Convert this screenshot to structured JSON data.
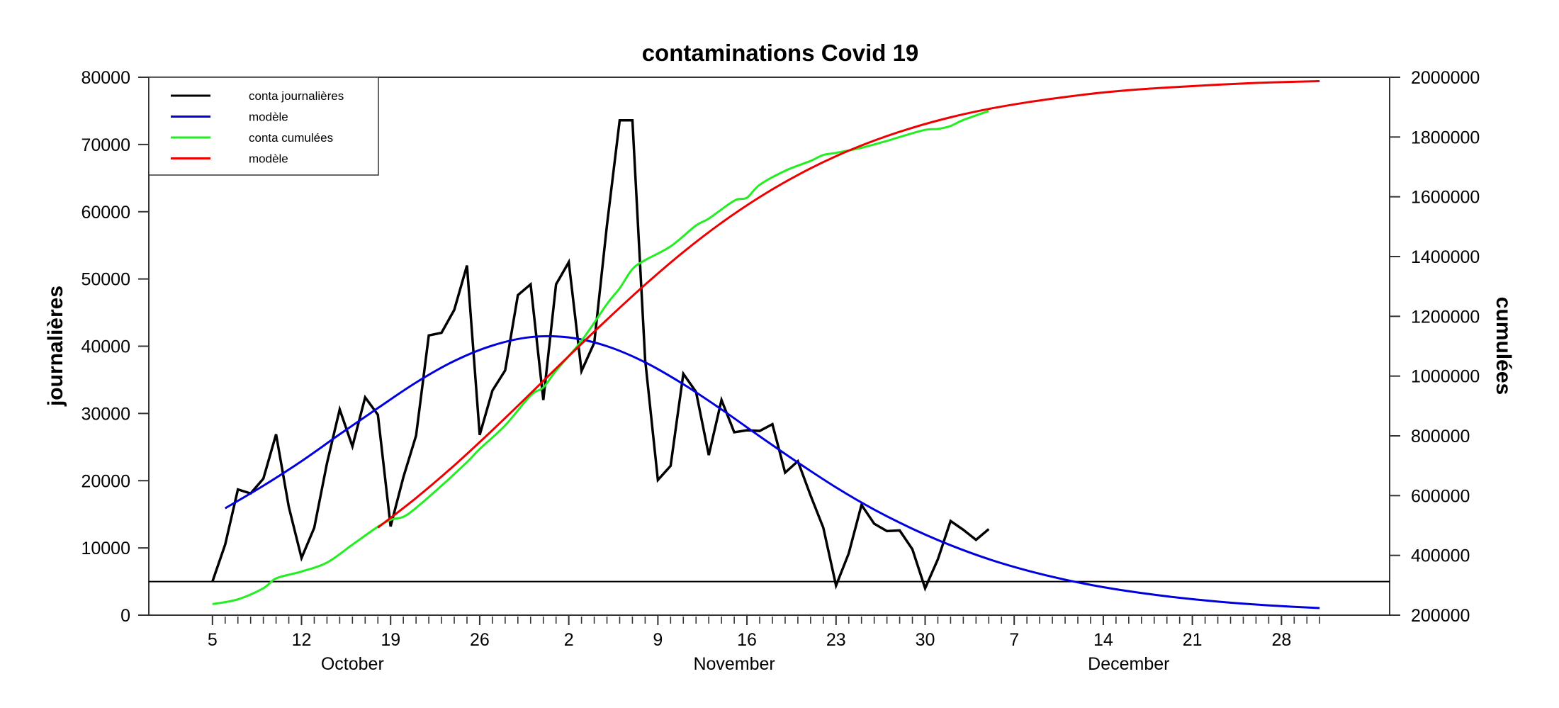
{
  "chart_data": {
    "type": "line",
    "title": "contaminations Covid 19",
    "ylabel_left": "journalières",
    "ylabel_right": "cumulées",
    "ylim_left": [
      0,
      80000
    ],
    "ylim_right": [
      200000,
      2000000
    ],
    "yticks_left": [
      "0",
      "10000",
      "20000",
      "30000",
      "40000",
      "50000",
      "60000",
      "70000",
      "80000"
    ],
    "yticks_right": [
      "200000",
      "400000",
      "600000",
      "800000",
      "1000000",
      "1200000",
      "1400000",
      "1600000",
      "1800000",
      "2000000"
    ],
    "xlim": [
      "09-30",
      "01-05"
    ],
    "xticks": [
      {
        "date": "10-05",
        "label": "5"
      },
      {
        "date": "10-12",
        "label": "12"
      },
      {
        "date": "10-19",
        "label": "19"
      },
      {
        "date": "10-26",
        "label": "26"
      },
      {
        "date": "11-02",
        "label": "2"
      },
      {
        "date": "11-09",
        "label": "9"
      },
      {
        "date": "11-16",
        "label": "16"
      },
      {
        "date": "11-23",
        "label": "23"
      },
      {
        "date": "11-30",
        "label": "30"
      },
      {
        "date": "12-07",
        "label": "7"
      },
      {
        "date": "12-14",
        "label": "14"
      },
      {
        "date": "12-21",
        "label": "21"
      },
      {
        "date": "12-28",
        "label": "28"
      }
    ],
    "minor_ticks": [
      "10-05",
      "12-31"
    ],
    "months": [
      {
        "label": "October",
        "center": "10-16"
      },
      {
        "label": "November",
        "center": "11-15"
      },
      {
        "label": "December",
        "center": "12-16"
      }
    ],
    "reference_line": {
      "axis": "left",
      "value": 5000,
      "color": "#000000"
    },
    "legend": {
      "placement": "top-left"
    },
    "grid": false,
    "series": [
      {
        "name": "conta journalières",
        "axis": "left",
        "color": "#000000",
        "smooth": false,
        "x": [
          "10-05",
          "10-06",
          "10-07",
          "10-08",
          "10-09",
          "10-10",
          "10-11",
          "10-12",
          "10-13",
          "10-14",
          "10-15",
          "10-16",
          "10-17",
          "10-18",
          "10-19",
          "10-20",
          "10-21",
          "10-22",
          "10-23",
          "10-24",
          "10-25",
          "10-26",
          "10-27",
          "10-28",
          "10-29",
          "10-30",
          "10-31",
          "11-01",
          "11-02",
          "11-03",
          "11-04",
          "11-05",
          "11-06",
          "11-07",
          "11-08",
          "11-09",
          "11-10",
          "11-11",
          "11-12",
          "11-13",
          "11-14",
          "11-15",
          "11-16",
          "11-17",
          "11-18",
          "11-19",
          "11-20",
          "11-21",
          "11-22",
          "11-23",
          "11-24",
          "11-25",
          "11-26",
          "11-27",
          "11-28",
          "11-29",
          "11-30",
          "12-01",
          "12-02",
          "12-03",
          "12-04",
          "12-05"
        ],
        "y": [
          5000,
          10500,
          18700,
          18100,
          20300,
          26900,
          16100,
          8500,
          13000,
          22600,
          30600,
          25100,
          32400,
          29800,
          13200,
          20500,
          26700,
          41600,
          42000,
          45400,
          52000,
          26800,
          33400,
          36400,
          47600,
          49200,
          32000,
          49200,
          52500,
          36300,
          40500,
          58000,
          73600,
          73600,
          38000,
          20100,
          22200,
          35900,
          33200,
          23800,
          32000,
          27200,
          27500,
          27400,
          28400,
          21200,
          22900,
          17800,
          13000,
          4400,
          9200,
          16400,
          13600,
          12500,
          12600,
          9800,
          4000,
          8300,
          14000,
          12700,
          11200,
          12800
        ]
      },
      {
        "name": "modèle",
        "axis": "left",
        "color": "#0000dd",
        "smooth": true,
        "x": [
          "10-06",
          "10-09",
          "10-12",
          "10-15",
          "10-18",
          "10-21",
          "10-24",
          "10-27",
          "10-30",
          "11-02",
          "11-05",
          "11-08",
          "11-11",
          "11-14",
          "11-17",
          "11-20",
          "11-23",
          "11-26",
          "11-29",
          "12-02",
          "12-05",
          "12-08",
          "12-11",
          "12-14",
          "12-17",
          "12-20",
          "12-23",
          "12-26",
          "12-29",
          "12-31"
        ],
        "y": [
          15900,
          19250,
          22900,
          26900,
          30800,
          34600,
          37800,
          40100,
          41350,
          41300,
          40000,
          37600,
          34350,
          30600,
          26600,
          22700,
          19000,
          15700,
          12850,
          10400,
          8330,
          6650,
          5280,
          4160,
          3290,
          2580,
          2020,
          1580,
          1240,
          1050
        ]
      },
      {
        "name": "conta cumulées",
        "axis": "right",
        "color": "#22ee22",
        "smooth": true,
        "x": [
          "10-05",
          "10-07",
          "10-09",
          "10-10",
          "10-12",
          "10-14",
          "10-16",
          "10-18",
          "10-19",
          "10-20",
          "10-21",
          "10-23",
          "10-25",
          "10-26",
          "10-28",
          "10-30",
          "10-31",
          "11-01",
          "11-03",
          "11-05",
          "11-06",
          "11-07",
          "11-08",
          "11-10",
          "11-12",
          "11-13",
          "11-15",
          "11-16",
          "11-17",
          "11-19",
          "11-21",
          "11-22",
          "11-23",
          "11-25",
          "11-27",
          "11-28",
          "11-30",
          "12-01",
          "12-02",
          "12-03",
          "12-05"
        ],
        "y": [
          237000,
          253000,
          290000,
          323000,
          346000,
          376000,
          436000,
          496000,
          519000,
          529000,
          559000,
          633000,
          712000,
          756000,
          835000,
          935000,
          962000,
          1018000,
          1118000,
          1241000,
          1294000,
          1358000,
          1388000,
          1434000,
          1504000,
          1527000,
          1587000,
          1597000,
          1640000,
          1687000,
          1720000,
          1740000,
          1747000,
          1764000,
          1787000,
          1800000,
          1824000,
          1827000,
          1837000,
          1857000,
          1887000
        ]
      },
      {
        "name": "modèle",
        "axis": "right",
        "color": "#ee0000",
        "smooth": true,
        "x": [
          "10-18",
          "10-21",
          "10-24",
          "10-27",
          "10-30",
          "11-02",
          "11-05",
          "11-08",
          "11-11",
          "11-14",
          "11-17",
          "11-20",
          "11-23",
          "11-26",
          "11-29",
          "12-02",
          "12-05",
          "12-08",
          "12-11",
          "12-14",
          "12-17",
          "12-20",
          "12-23",
          "12-26",
          "12-29",
          "12-31"
        ],
        "y": [
          493000,
          592000,
          701000,
          819000,
          942000,
          1067000,
          1189000,
          1306000,
          1415000,
          1513000,
          1599000,
          1673000,
          1736000,
          1788000,
          1831000,
          1866000,
          1894000,
          1916000,
          1934000,
          1949000,
          1960000,
          1968000,
          1975000,
          1981000,
          1985000,
          1987000
        ]
      }
    ]
  }
}
